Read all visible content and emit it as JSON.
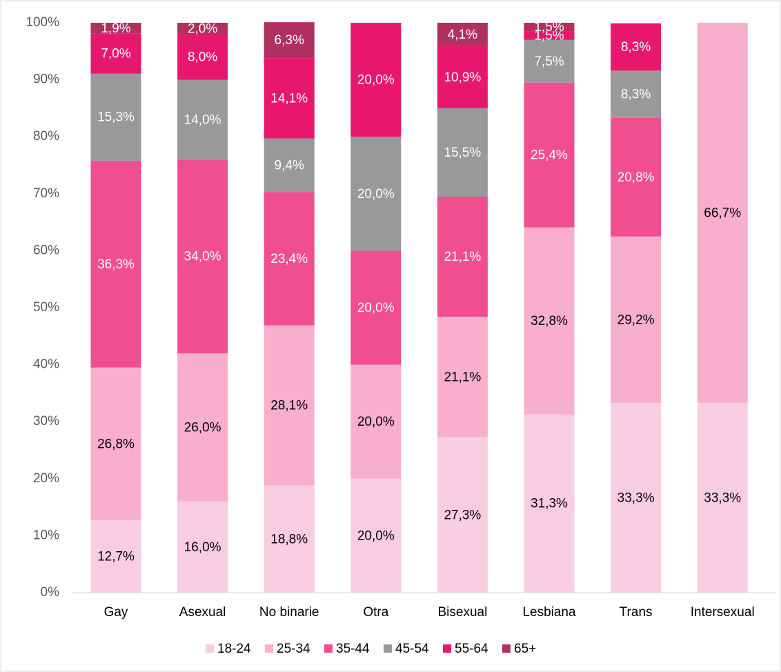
{
  "chart_data": {
    "type": "stacked_bar",
    "categories": [
      "Gay",
      "Asexual",
      "No binarie",
      "Otra",
      "Bisexual",
      "Lesbiana",
      "Trans",
      "Intersexual"
    ],
    "series": [
      {
        "name": "18-24",
        "color": "#f9cde0",
        "values": [
          12.7,
          16.0,
          18.8,
          20.0,
          27.3,
          31.3,
          33.3,
          33.3
        ],
        "value_labels": [
          "12,7%",
          "16,0%",
          "18,8%",
          "20,0%",
          "27,3%",
          "31,3%",
          "33,3%",
          "33,3%"
        ]
      },
      {
        "name": "25-34",
        "color": "#f7afcb",
        "values": [
          26.8,
          26.0,
          28.1,
          20.0,
          21.1,
          32.8,
          29.2,
          66.7
        ],
        "value_labels": [
          "26,8%",
          "26,0%",
          "28,1%",
          "20,0%",
          "21,1%",
          "32,8%",
          "29,2%",
          "66,7%"
        ]
      },
      {
        "name": "35-44",
        "color": "#f04e8f",
        "values": [
          36.3,
          34.0,
          23.4,
          20.0,
          21.1,
          25.4,
          20.8,
          null
        ],
        "value_labels": [
          "36,3%",
          "34,0%",
          "23,4%",
          "20,0%",
          "21,1%",
          "25,4%",
          "20,8%",
          null
        ]
      },
      {
        "name": "45-54",
        "color": "#999999",
        "values": [
          15.3,
          14.0,
          9.4,
          20.0,
          15.5,
          7.5,
          8.3,
          null
        ],
        "value_labels": [
          "15,3%",
          "14,0%",
          "9,4%",
          "20,0%",
          "15,5%",
          "7,5%",
          "8,3%",
          null
        ]
      },
      {
        "name": "55-64",
        "color": "#e8176e",
        "values": [
          7.0,
          8.0,
          14.1,
          20.0,
          10.9,
          1.5,
          8.3,
          null
        ],
        "value_labels": [
          "7,0%",
          "8,0%",
          "14,1%",
          "20,0%",
          "10,9%",
          "1,5%",
          "8,3%",
          null
        ]
      },
      {
        "name": "65+",
        "color": "#b03060",
        "values": [
          1.9,
          2.0,
          6.3,
          null,
          4.1,
          1.5,
          null,
          null
        ],
        "value_labels": [
          "1,9%",
          "2,0%",
          "6,3%",
          null,
          "4,1%",
          "1,5%",
          null,
          null
        ]
      }
    ],
    "ylim": [
      0,
      100
    ],
    "yticks": [
      {
        "value": 0,
        "label": "0%"
      },
      {
        "value": 10,
        "label": "10%"
      },
      {
        "value": 20,
        "label": "20%"
      },
      {
        "value": 30,
        "label": "30%"
      },
      {
        "value": 40,
        "label": "40%"
      },
      {
        "value": 50,
        "label": "50%"
      },
      {
        "value": 60,
        "label": "60%"
      },
      {
        "value": 70,
        "label": "70%"
      },
      {
        "value": 80,
        "label": "80%"
      },
      {
        "value": 90,
        "label": "90%"
      },
      {
        "value": 100,
        "label": "100%"
      }
    ],
    "legend": "bottom"
  }
}
